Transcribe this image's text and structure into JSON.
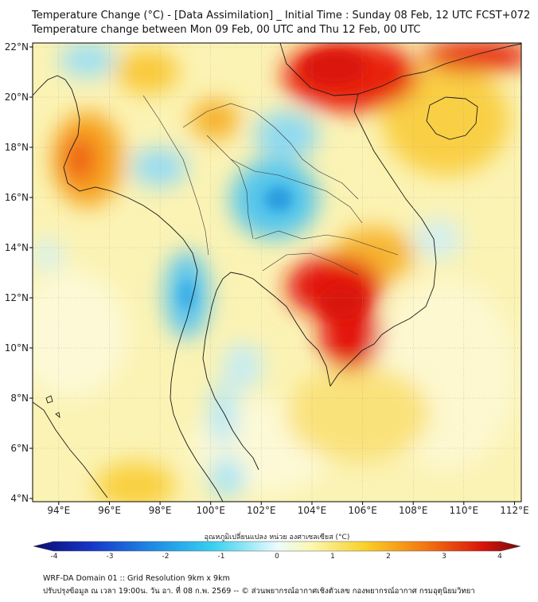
{
  "header": {
    "title_line1": "Temperature Change (°C) - [Data Assimilation] _ Initial Time : Sunday 08 Feb, 12 UTC FCST+072",
    "title_line2": "Temperature change between Mon 09 Feb, 00 UTC and Thu 12 Feb, 00 UTC"
  },
  "map": {
    "lon_ticks": [
      "94°E",
      "96°E",
      "98°E",
      "100°E",
      "102°E",
      "104°E",
      "106°E",
      "108°E",
      "110°E",
      "112°E"
    ],
    "lat_ticks": [
      "22°N",
      "20°N",
      "18°N",
      "16°N",
      "14°N",
      "12°N",
      "10°N",
      "8°N",
      "6°N",
      "4°N"
    ],
    "lon_range": [
      93,
      112.3
    ],
    "lat_range": [
      4,
      22.3
    ],
    "warm_color": "#e3160d",
    "cool_color": "#2aa8e0",
    "neutral_color": "#fbf7c9"
  },
  "colorbar": {
    "label": "อุณหภูมิเปลี่ยนแปลง หน่วย องศาเซลเซียส (°C)",
    "ticks": [
      "-4",
      "-3",
      "-2",
      "-1",
      "0",
      "1",
      "2",
      "3",
      "4"
    ],
    "range": [
      -4,
      4
    ],
    "colors": [
      "#0b0b6e",
      "#1736c8",
      "#1f8ee6",
      "#38d1f0",
      "#eafcfd",
      "#fcf7b0",
      "#f9d12a",
      "#f47a10",
      "#d9160b",
      "#7a0808"
    ]
  },
  "footer": {
    "line1": "WRF-DA Domain 01 :: Grid Resolution 9km x 9km",
    "line2": "ปรับปรุงข้อมูล ณ เวลา 19:00น. วัน อา. ที่ 08 ก.พ. 2569 -- © ส่วนพยากรณ์อากาศเชิงตัวเลข กองพยากรณ์อากาศ กรมอุตุนิยมวิทยา"
  }
}
